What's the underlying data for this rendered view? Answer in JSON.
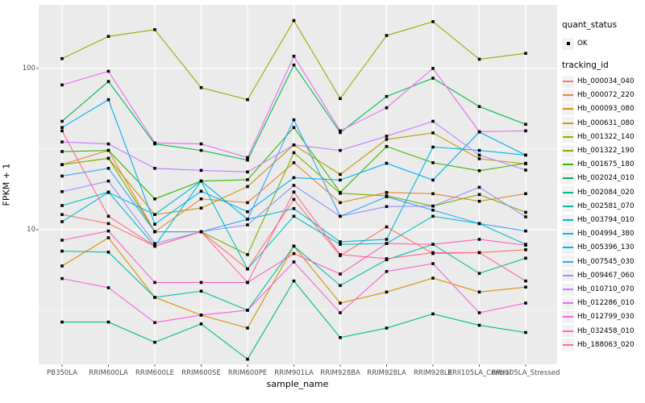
{
  "chart_data": {
    "type": "line",
    "title": "",
    "xlabel": "sample_name",
    "ylabel": "FPKM + 1",
    "y_scale": "log10",
    "ylim": [
      1.46,
      248
    ],
    "y_ticks": [
      10,
      100
    ],
    "y_minor_gridlines": [
      3.162,
      31.62
    ],
    "grid": "on",
    "legend_position": "right",
    "point_shape": "filled-black-square",
    "categories": [
      "PB350LA",
      "RRIM600LA",
      "RRIM600LE",
      "RRIM600SE",
      "RRIM600PE",
      "RRIM901LA",
      "RRIM928BA",
      "RRIM928LA",
      "RRIM928LE",
      "RRII105LA_Control",
      "RRII105LA_Stressed"
    ],
    "series": [
      {
        "name": "Hb_000034_040",
        "color": "#F8766D",
        "values": [
          12.4,
          10.9,
          7.9,
          9.7,
          5.7,
          15.4,
          6.9,
          10.4,
          7.1,
          7.2,
          7.5
        ]
      },
      {
        "name": "Hb_000072_220",
        "color": "#EA8331",
        "values": [
          25.3,
          31,
          9.7,
          15.5,
          14.7,
          26,
          14.7,
          17,
          16.7,
          15,
          16.7
        ]
      },
      {
        "name": "Hb_000093_080",
        "color": "#D89000",
        "values": [
          5.95,
          8.9,
          3.8,
          2.95,
          2.45,
          7.9,
          3.5,
          4.1,
          5.0,
          4.1,
          4.4
        ]
      },
      {
        "name": "Hb_000631_080",
        "color": "#C09B00",
        "values": [
          25.3,
          27.7,
          12.4,
          13.6,
          18.5,
          33.5,
          22,
          36.3,
          39.8,
          27.5,
          25.6
        ]
      },
      {
        "name": "Hb_001322_140",
        "color": "#A3A500",
        "values": [
          115,
          158,
          174,
          76,
          64,
          198,
          65,
          160,
          195,
          114,
          124
        ]
      },
      {
        "name": "Hb_001322_190",
        "color": "#7CAE00",
        "values": [
          25.3,
          27.7,
          9.7,
          9.7,
          7.0,
          30,
          16.8,
          16.2,
          14,
          16.5,
          12.8
        ]
      },
      {
        "name": "Hb_001675_180",
        "color": "#39B600",
        "values": [
          30.5,
          31,
          15.5,
          20,
          20.4,
          43,
          17,
          32.8,
          26,
          23.2,
          25.8
        ]
      },
      {
        "name": "Hb_002024_010",
        "color": "#00BB4E",
        "values": [
          47,
          83,
          34,
          31,
          27,
          105,
          40,
          67,
          87,
          58,
          45
        ]
      },
      {
        "name": "Hb_002084_020",
        "color": "#00BF7D",
        "values": [
          2.67,
          2.67,
          2.0,
          2.6,
          1.57,
          4.8,
          2.14,
          2.45,
          3.0,
          2.55,
          2.3
        ]
      },
      {
        "name": "Hb_002581_070",
        "color": "#00C1A3",
        "values": [
          7.35,
          7.25,
          3.8,
          4.15,
          3.16,
          7.9,
          4.5,
          6.5,
          8.1,
          5.35,
          6.65
        ]
      },
      {
        "name": "Hb_003794_010",
        "color": "#00BFC4",
        "values": [
          14.1,
          17.1,
          7.9,
          20,
          5.7,
          12.1,
          8.1,
          8.2,
          12.1,
          10.9,
          8.1
        ]
      },
      {
        "name": "Hb_004994_380",
        "color": "#00BAE0",
        "values": [
          11.2,
          17,
          12.4,
          20,
          11.6,
          13.5,
          8.4,
          8.7,
          32.5,
          31,
          29
        ]
      },
      {
        "name": "Hb_005396_130",
        "color": "#00B0F6",
        "values": [
          43,
          64,
          10.8,
          17.3,
          12.9,
          21,
          20.3,
          25.8,
          20.3,
          40.3,
          29
        ]
      },
      {
        "name": "Hb_007545_030",
        "color": "#35A2FF",
        "values": [
          21.5,
          24,
          9.7,
          9.7,
          11.6,
          48,
          12.1,
          16,
          13.2,
          10.9,
          9.8
        ]
      },
      {
        "name": "Hb_009467_060",
        "color": "#9590FF",
        "values": [
          17.2,
          20,
          8.2,
          9.7,
          10.7,
          18.8,
          12.1,
          13.9,
          14,
          18.3,
          12
        ]
      },
      {
        "name": "Hb_010710_070",
        "color": "#C77CFF",
        "values": [
          35,
          34,
          24,
          23.3,
          22.8,
          33.5,
          31,
          38,
          47,
          29,
          23.4
        ]
      },
      {
        "name": "Hb_012286_010",
        "color": "#E76BF3",
        "values": [
          79,
          96,
          34.5,
          34,
          28,
          119,
          41,
          57,
          100,
          40.5,
          41
        ]
      },
      {
        "name": "Hb_012799_030",
        "color": "#FA62DB",
        "values": [
          4.97,
          4.36,
          2.65,
          2.95,
          3.16,
          6.3,
          3.05,
          5.5,
          6.15,
          3.05,
          3.5
        ]
      },
      {
        "name": "Hb_032458_010",
        "color": "#FF62BC",
        "values": [
          8.6,
          9.8,
          4.7,
          4.7,
          4.7,
          7.1,
          5.3,
          8.2,
          8.1,
          8.7,
          8.0
        ]
      },
      {
        "name": "Hb_188063_020",
        "color": "#FF6A98",
        "values": [
          41,
          12.1,
          7.9,
          9.7,
          4.7,
          17.1,
          7.0,
          6.6,
          7.2,
          7.2,
          4.8
        ]
      }
    ]
  },
  "legend": {
    "quant_status_title": "quant_status",
    "quant_status_entries": [
      "OK"
    ],
    "tracking_id_title": "tracking_id"
  },
  "style": {
    "panel_bg": "#EBEBEB",
    "grid_color": "#FFFFFF",
    "key_bg": "#F2F2F2",
    "tick_color": "#333333",
    "tick_label_color": "#4D4D4D",
    "point_color": "#000000"
  }
}
